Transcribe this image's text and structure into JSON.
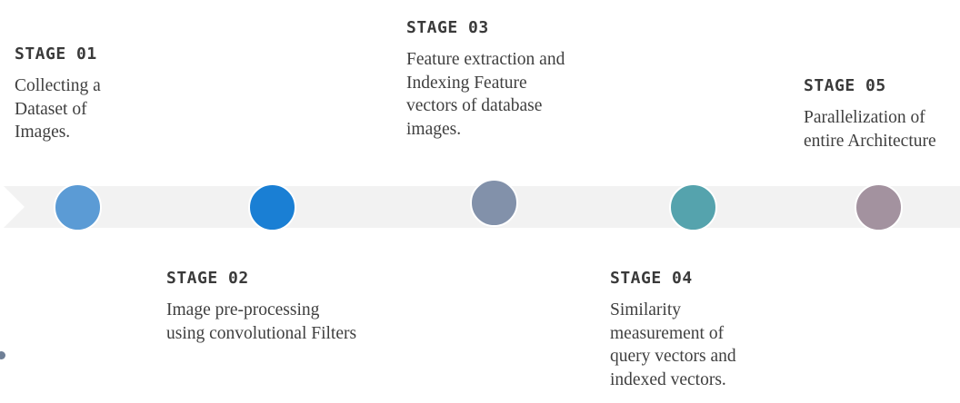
{
  "stages": [
    {
      "title": "STAGE 01",
      "desc": "Collecting a\nDataset of\nImages.",
      "color": "#5b9bd5"
    },
    {
      "title": "STAGE 02",
      "desc": "Image pre-processing\nusing convolutional Filters",
      "color": "#1a7fd4"
    },
    {
      "title": "STAGE 03",
      "desc": "Feature extraction and\nIndexing Feature\nvectors of database\nimages.",
      "color": "#8291aa"
    },
    {
      "title": "STAGE 04",
      "desc": "Similarity\nmeasurement of\nquery vectors and\nindexed vectors.",
      "color": "#55a3ad"
    },
    {
      "title": "STAGE 05",
      "desc": "Parallelization of\nentire Architecture",
      "color": "#a3929f"
    }
  ],
  "colors": {
    "band": "#f2f2f2",
    "dot": "#6f7f96"
  }
}
